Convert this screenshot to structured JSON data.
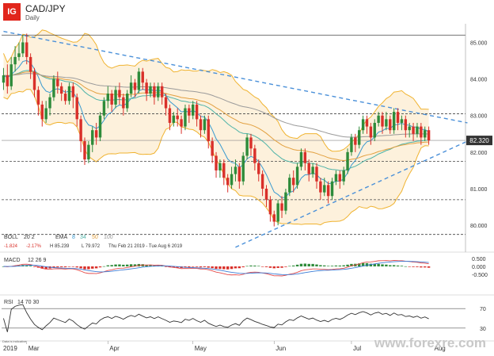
{
  "header": {
    "logo": "IG",
    "symbol": "CAD/JPY",
    "interval": "Daily"
  },
  "colors": {
    "bull": "#2e8b3a",
    "bear": "#d9302a",
    "boll": "#f0b330",
    "boll_fill": "#fdf1dc",
    "ema8": "#3a9ad0",
    "ema34": "#4fb3a8",
    "ema50": "#e2a040",
    "ema100": "#9a9a9a",
    "trend": "#4a90d9",
    "macd": "#e34b4b",
    "signal": "#3a7bd5",
    "rsi": "#333333",
    "price_tag": "#333333"
  },
  "legend": {
    "boll_label": "BOLL",
    "boll_params": "20 2",
    "ema_label": "EMA",
    "ema_p1": "8",
    "ema_p2": "34",
    "ema_p3": "50",
    "ema_p4": "100",
    "change": "-1.824",
    "change_pct": "-2.17%",
    "high": "H 85.239",
    "low": "L 79.972",
    "range": "Thu Feb 21 2019 - Tue Aug 6 2019",
    "macd_label": "MACD",
    "macd_params": "12 26 9",
    "rsi_label": "RSI",
    "rsi_params": "14 70 30"
  },
  "price_tag": "82.320",
  "disclaimer": "Data is indicative",
  "watermark": "www.forexre.com",
  "chart_data": {
    "type": "candlestick",
    "title": "CAD/JPY",
    "subtitle": "Daily",
    "x_ticks": [
      {
        "label": "2019",
        "i": 0
      },
      {
        "label": "Mar",
        "i": 6
      },
      {
        "label": "Apr",
        "i": 27
      },
      {
        "label": "May",
        "i": 49
      },
      {
        "label": "Jun",
        "i": 70
      },
      {
        "label": "Jul",
        "i": 90
      },
      {
        "label": "Aug",
        "i": 111
      }
    ],
    "num_periods": 120,
    "price": {
      "ylim": [
        79.7,
        85.4
      ],
      "yticks": [
        80,
        81,
        82,
        83,
        84,
        85
      ],
      "ytick_labels": [
        "80.000",
        "81.000",
        "82.000",
        "83.000",
        "84.000",
        "85.000"
      ],
      "last": 82.32,
      "dashed_levels": [
        85.2,
        83.05,
        81.75,
        80.7,
        79.75
      ],
      "trendlines": [
        {
          "from": [
            0,
            85.3
          ],
          "to": [
            120,
            82.8
          ]
        },
        {
          "from": [
            60,
            79.4
          ],
          "to": [
            120,
            82.3
          ]
        }
      ],
      "candles": [
        [
          0,
          83.9,
          84.1,
          84.3,
          83.7
        ],
        [
          1,
          84.1,
          83.8,
          84.4,
          83.6
        ],
        [
          2,
          83.8,
          84.4,
          84.6,
          83.7
        ],
        [
          3,
          84.4,
          84.6,
          84.9,
          84.2
        ],
        [
          4,
          84.6,
          84.7,
          85.0,
          84.5
        ],
        [
          5,
          84.7,
          85.0,
          85.2,
          84.6
        ],
        [
          6,
          85.0,
          84.6,
          85.24,
          84.4
        ],
        [
          7,
          84.6,
          84.2,
          84.7,
          84.0
        ],
        [
          8,
          84.2,
          83.7,
          84.3,
          83.5
        ],
        [
          9,
          83.7,
          83.3,
          83.8,
          83.0
        ],
        [
          10,
          83.3,
          82.9,
          83.4,
          82.7
        ],
        [
          11,
          82.9,
          83.2,
          83.4,
          82.8
        ],
        [
          12,
          83.2,
          83.5,
          83.6,
          83.0
        ],
        [
          13,
          83.5,
          84.0,
          84.1,
          83.4
        ],
        [
          14,
          84.0,
          83.8,
          84.2,
          83.6
        ],
        [
          15,
          83.8,
          83.6,
          83.9,
          83.4
        ],
        [
          16,
          83.6,
          83.4,
          83.7,
          83.3
        ],
        [
          17,
          83.4,
          83.8,
          83.9,
          83.3
        ],
        [
          18,
          83.8,
          83.5,
          83.9,
          83.2
        ],
        [
          19,
          83.5,
          82.9,
          83.6,
          82.7
        ],
        [
          20,
          82.9,
          82.3,
          83.0,
          82.0
        ],
        [
          21,
          82.3,
          81.8,
          82.4,
          81.65
        ],
        [
          22,
          81.8,
          82.2,
          82.3,
          81.7
        ],
        [
          23,
          82.2,
          82.6,
          82.7,
          82.0
        ],
        [
          24,
          82.6,
          82.4,
          82.8,
          82.2
        ],
        [
          25,
          82.4,
          83.0,
          83.1,
          82.3
        ],
        [
          26,
          83.0,
          83.4,
          83.5,
          82.9
        ],
        [
          27,
          83.4,
          83.6,
          83.8,
          83.2
        ],
        [
          28,
          83.6,
          83.3,
          83.7,
          83.1
        ],
        [
          29,
          83.3,
          83.7,
          83.8,
          83.2
        ],
        [
          30,
          83.7,
          83.5,
          83.9,
          83.3
        ],
        [
          31,
          83.5,
          83.2,
          83.6,
          83.0
        ],
        [
          32,
          83.2,
          83.6,
          83.7,
          83.1
        ],
        [
          33,
          83.6,
          83.9,
          84.1,
          83.5
        ],
        [
          34,
          83.9,
          83.7,
          84.0,
          83.5
        ],
        [
          35,
          83.7,
          84.2,
          84.3,
          83.6
        ],
        [
          36,
          84.2,
          83.9,
          84.3,
          83.7
        ],
        [
          37,
          83.9,
          83.6,
          84.0,
          83.4
        ],
        [
          38,
          83.6,
          83.8,
          83.9,
          83.5
        ],
        [
          39,
          83.8,
          83.5,
          83.9,
          83.3
        ],
        [
          40,
          83.5,
          83.8,
          83.9,
          83.4
        ],
        [
          41,
          83.8,
          83.5,
          83.9,
          83.3
        ],
        [
          42,
          83.5,
          83.2,
          83.6,
          83.0
        ],
        [
          43,
          83.2,
          82.8,
          83.3,
          82.6
        ],
        [
          44,
          82.8,
          83.0,
          83.1,
          82.7
        ],
        [
          45,
          83.0,
          82.9,
          83.2,
          82.7
        ],
        [
          46,
          82.9,
          82.7,
          83.0,
          82.5
        ],
        [
          47,
          82.7,
          83.2,
          83.3,
          82.6
        ],
        [
          48,
          83.2,
          83.0,
          83.3,
          82.8
        ],
        [
          49,
          83.0,
          83.3,
          83.4,
          82.9
        ],
        [
          50,
          83.3,
          82.9,
          83.4,
          82.7
        ],
        [
          51,
          82.9,
          82.6,
          83.0,
          82.4
        ],
        [
          52,
          82.6,
          82.9,
          83.0,
          82.5
        ],
        [
          53,
          82.9,
          82.3,
          83.0,
          82.1
        ],
        [
          54,
          82.3,
          81.9,
          82.4,
          81.7
        ],
        [
          55,
          81.9,
          81.5,
          82.0,
          81.3
        ],
        [
          56,
          81.5,
          81.7,
          81.8,
          81.3
        ],
        [
          57,
          81.7,
          81.3,
          81.8,
          81.1
        ],
        [
          58,
          81.3,
          81.1,
          81.4,
          80.9
        ],
        [
          59,
          81.1,
          81.4,
          81.6,
          81.0
        ],
        [
          60,
          81.4,
          81.6,
          81.8,
          81.2
        ],
        [
          61,
          81.6,
          81.2,
          81.7,
          81.0
        ],
        [
          62,
          81.2,
          81.9,
          82.0,
          81.1
        ],
        [
          63,
          81.9,
          82.4,
          82.5,
          81.8
        ],
        [
          64,
          82.4,
          82.1,
          82.5,
          81.9
        ],
        [
          65,
          82.1,
          81.7,
          82.2,
          81.5
        ],
        [
          66,
          81.7,
          81.4,
          81.8,
          81.2
        ],
        [
          67,
          81.4,
          81.0,
          81.5,
          80.8
        ],
        [
          68,
          81.0,
          80.7,
          81.1,
          80.5
        ],
        [
          69,
          80.7,
          80.3,
          80.8,
          80.1
        ],
        [
          70,
          80.3,
          80.1,
          80.4,
          79.97
        ],
        [
          71,
          80.1,
          80.6,
          80.7,
          80.0
        ],
        [
          72,
          80.6,
          80.4,
          80.8,
          80.2
        ],
        [
          73,
          80.4,
          80.9,
          81.0,
          80.3
        ],
        [
          74,
          80.9,
          81.3,
          81.4,
          80.8
        ],
        [
          75,
          81.3,
          81.1,
          81.5,
          80.9
        ],
        [
          76,
          81.1,
          81.6,
          81.7,
          81.0
        ],
        [
          77,
          81.6,
          82.0,
          82.1,
          81.5
        ],
        [
          78,
          82.0,
          81.7,
          82.1,
          81.5
        ],
        [
          79,
          81.7,
          81.4,
          81.8,
          81.2
        ],
        [
          80,
          81.4,
          81.6,
          81.7,
          81.3
        ],
        [
          81,
          81.6,
          81.2,
          81.7,
          81.0
        ],
        [
          82,
          81.2,
          80.9,
          81.3,
          80.7
        ],
        [
          83,
          80.9,
          81.1,
          81.3,
          80.8
        ],
        [
          84,
          81.1,
          80.8,
          81.2,
          80.6
        ],
        [
          85,
          80.8,
          81.2,
          81.3,
          80.7
        ],
        [
          86,
          81.2,
          81.4,
          81.5,
          81.1
        ],
        [
          87,
          81.4,
          81.2,
          81.5,
          81.0
        ],
        [
          88,
          81.2,
          81.5,
          81.6,
          81.1
        ],
        [
          89,
          81.5,
          82.0,
          82.1,
          81.4
        ],
        [
          90,
          82.0,
          82.4,
          82.5,
          81.9
        ],
        [
          91,
          82.4,
          82.2,
          82.5,
          82.0
        ],
        [
          92,
          82.2,
          82.6,
          82.7,
          82.1
        ],
        [
          93,
          82.6,
          82.9,
          83.0,
          82.5
        ],
        [
          94,
          82.9,
          82.7,
          83.0,
          82.5
        ],
        [
          95,
          82.7,
          82.4,
          82.8,
          82.2
        ],
        [
          96,
          82.4,
          82.8,
          82.9,
          82.3
        ],
        [
          97,
          82.8,
          83.0,
          83.1,
          82.7
        ],
        [
          98,
          83.0,
          82.7,
          83.1,
          82.5
        ],
        [
          99,
          82.7,
          82.9,
          83.1,
          82.6
        ],
        [
          100,
          82.9,
          82.6,
          83.0,
          82.5
        ],
        [
          101,
          82.6,
          83.1,
          83.2,
          82.5
        ],
        [
          102,
          83.1,
          82.8,
          83.2,
          82.6
        ],
        [
          103,
          82.8,
          82.9,
          83.0,
          82.6
        ],
        [
          104,
          82.9,
          82.6,
          83.0,
          82.4
        ],
        [
          105,
          82.6,
          82.7,
          82.8,
          82.4
        ],
        [
          106,
          82.7,
          82.5,
          82.8,
          82.3
        ],
        [
          107,
          82.5,
          82.7,
          82.8,
          82.4
        ],
        [
          108,
          82.7,
          82.4,
          82.8,
          82.2
        ],
        [
          109,
          82.4,
          82.6,
          82.7,
          82.3
        ],
        [
          110,
          82.6,
          82.32,
          82.7,
          82.2
        ]
      ]
    },
    "macd": {
      "ylim": [
        -0.8,
        0.7
      ],
      "yticks": [
        0.5,
        0,
        -0.5
      ],
      "ytick_labels": [
        "0.500",
        "0.000",
        "-0.500"
      ]
    },
    "rsi": {
      "ylim": [
        20,
        80
      ],
      "yticks": [
        70,
        30
      ],
      "ytick_labels": [
        "70",
        "30"
      ]
    }
  }
}
